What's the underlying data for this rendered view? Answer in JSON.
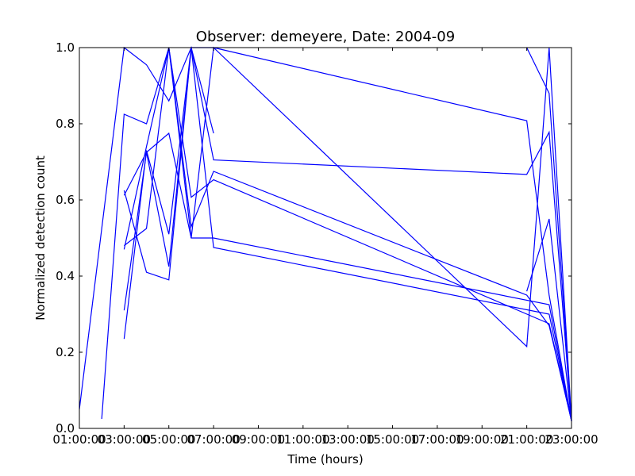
{
  "chart_data": {
    "type": "line",
    "title": "Observer: demeyere, Date: 2004-09",
    "xlabel": "Time (hours)",
    "ylabel": "Normalized detection count",
    "xlim": [
      1,
      23
    ],
    "ylim": [
      0,
      1
    ],
    "x_ticks": [
      1,
      3,
      5,
      7,
      9,
      11,
      13,
      15,
      17,
      19,
      21,
      23
    ],
    "x_tick_labels": [
      "01:00:00",
      "03:00:00",
      "05:00:00",
      "07:00:00",
      "09:00:00",
      "11:00:00",
      "13:00:00",
      "15:00:00",
      "17:00:00",
      "19:00:00",
      "21:00:00",
      "23:00:00"
    ],
    "y_ticks": [
      0,
      0.2,
      0.4,
      0.6,
      0.8,
      1.0
    ],
    "y_tick_labels": [
      "0.0",
      "0.2",
      "0.4",
      "0.6",
      "0.8",
      "1.0"
    ],
    "grid": false,
    "legend": "none",
    "line_color": "#0000ff",
    "series": [
      {
        "x": [
          1,
          3,
          4,
          5,
          6,
          7,
          21,
          22,
          23
        ],
        "y": [
          0.05,
          1.0,
          0.955,
          0.86,
          1.0,
          0.705,
          0.667,
          0.778,
          0.02
        ]
      },
      {
        "x": [
          2,
          3,
          4,
          5,
          6,
          7,
          21,
          22,
          23
        ],
        "y": [
          0.025,
          0.825,
          0.8,
          1.0,
          0.5,
          1.0,
          0.215,
          1.0,
          0.02
        ]
      },
      {
        "x": [
          3,
          4,
          5,
          6,
          7,
          22,
          23
        ],
        "y": [
          0.235,
          0.73,
          0.51,
          1.0,
          0.475,
          0.3,
          0.02
        ]
      },
      {
        "x": [
          3,
          4,
          5,
          6,
          7,
          22,
          23
        ],
        "y": [
          0.48,
          0.525,
          1.0,
          0.607,
          0.653,
          0.275,
          0.02
        ]
      },
      {
        "x": [
          3,
          4,
          5,
          6,
          7
        ],
        "y": [
          0.31,
          0.725,
          0.425,
          1.0,
          0.775
        ]
      },
      {
        "x": [
          3,
          4,
          5,
          6,
          7
        ],
        "y": [
          0.625,
          0.41,
          0.39,
          1.0,
          1.0
        ]
      },
      {
        "x": [
          3,
          4,
          5,
          6,
          7,
          22,
          23
        ],
        "y": [
          0.612,
          0.725,
          0.775,
          0.5,
          0.5,
          0.325,
          0.02
        ]
      },
      {
        "x": [
          3,
          4,
          5,
          6,
          7,
          21,
          22,
          23
        ],
        "y": [
          0.47,
          0.74,
          1.0,
          0.53,
          0.675,
          0.35,
          0.27,
          0.02
        ]
      },
      {
        "x": [
          7,
          21,
          22,
          23
        ],
        "y": [
          1.0,
          0.808,
          0.35,
          0.02
        ]
      },
      {
        "x": [
          21,
          22,
          23
        ],
        "y": [
          0.36,
          0.55,
          0.02
        ]
      },
      {
        "x": [
          21,
          22,
          23
        ],
        "y": [
          1.0,
          0.88,
          0.02
        ]
      }
    ]
  }
}
